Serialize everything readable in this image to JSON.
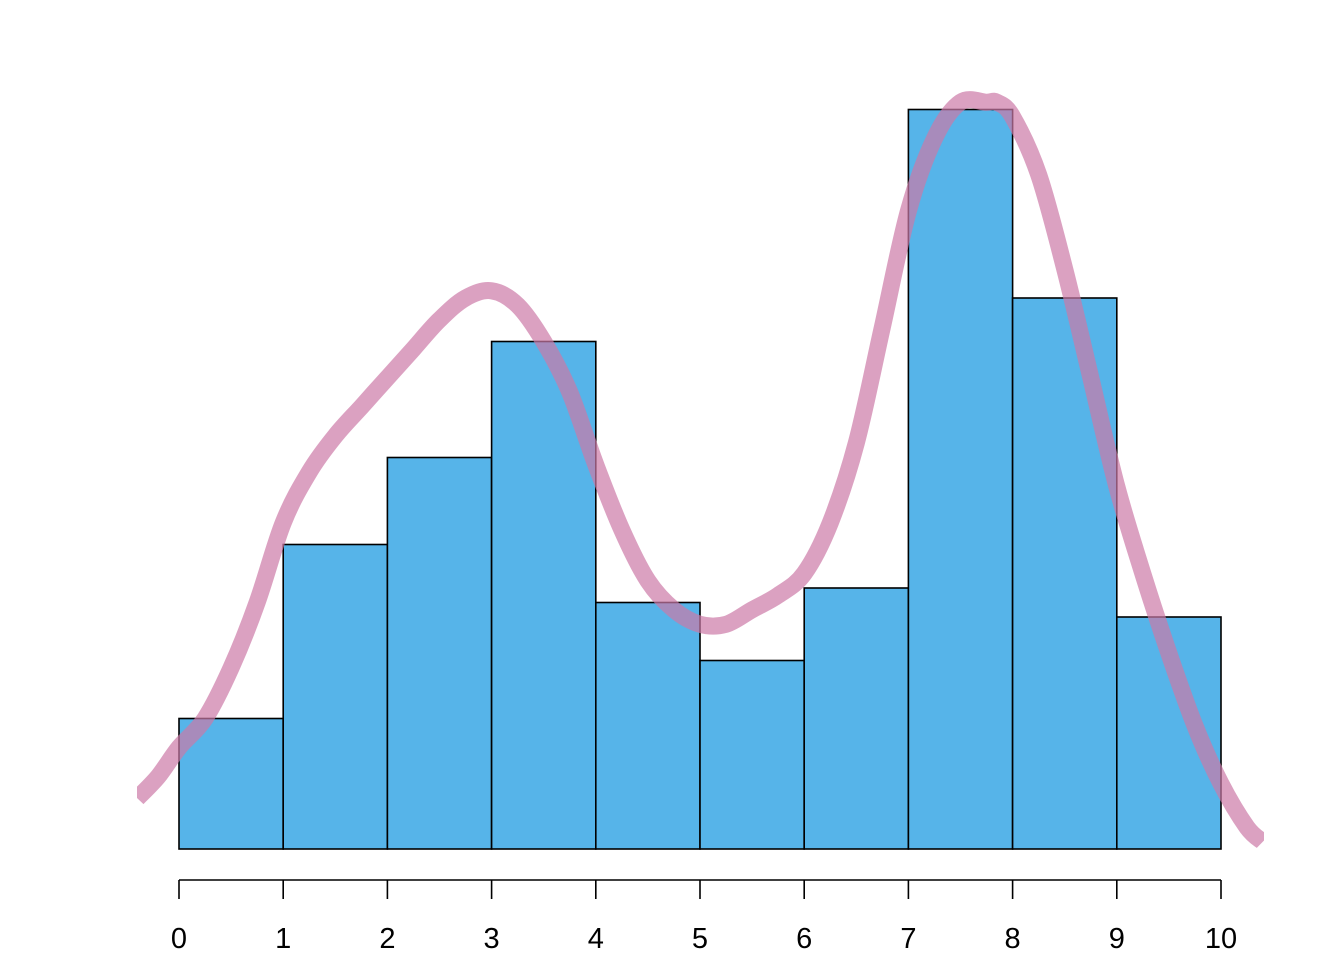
{
  "chart_data": {
    "type": "bar",
    "bins": [
      {
        "x0": 0,
        "x1": 1,
        "value": 9
      },
      {
        "x0": 1,
        "x1": 2,
        "value": 21
      },
      {
        "x0": 2,
        "x1": 3,
        "value": 27
      },
      {
        "x0": 3,
        "x1": 4,
        "value": 35
      },
      {
        "x0": 4,
        "x1": 5,
        "value": 17
      },
      {
        "x0": 5,
        "x1": 6,
        "value": 13
      },
      {
        "x0": 6,
        "x1": 7,
        "value": 18
      },
      {
        "x0": 7,
        "x1": 8,
        "value": 51
      },
      {
        "x0": 8,
        "x1": 9,
        "value": 38
      },
      {
        "x0": 9,
        "x1": 10,
        "value": 16
      }
    ],
    "density_curve": {
      "x": [
        -0.4,
        -0.2,
        0,
        0.25,
        0.5,
        0.75,
        1,
        1.25,
        1.5,
        1.75,
        2,
        2.25,
        2.5,
        2.75,
        3,
        3.25,
        3.5,
        3.75,
        4,
        4.25,
        4.5,
        4.75,
        5,
        5.25,
        5.5,
        5.75,
        6,
        6.25,
        6.5,
        6.75,
        7,
        7.25,
        7.5,
        7.75,
        7.85,
        8,
        8.25,
        8.5,
        8.75,
        9,
        9.25,
        9.5,
        9.75,
        10,
        10.25,
        10.4
      ],
      "y": [
        3.5,
        5.0,
        7.0,
        9.0,
        12.5,
        17.0,
        22.5,
        26.0,
        28.5,
        30.5,
        32.5,
        34.5,
        36.5,
        38.0,
        38.5,
        37.5,
        35.0,
        31.5,
        26.5,
        22.0,
        18.5,
        16.5,
        15.5,
        15.5,
        16.5,
        17.5,
        19.0,
        22.5,
        28.0,
        36.0,
        44.0,
        49.0,
        51.5,
        51.5,
        51.5,
        50.5,
        46.5,
        40.0,
        32.5,
        25.0,
        19.0,
        13.5,
        8.5,
        4.5,
        1.5,
        0.5
      ]
    },
    "xticks": [
      "0",
      "1",
      "2",
      "3",
      "4",
      "5",
      "6",
      "7",
      "8",
      "9",
      "10"
    ],
    "xlim": [
      -0.4,
      10.4
    ],
    "ylim": [
      0,
      55
    ],
    "title": "",
    "xlabel": "",
    "ylabel": "",
    "grid": false,
    "colors": {
      "bar_fill": "#56B4E9",
      "bar_stroke": "#000000",
      "curve": "#CC79A7",
      "axis": "#000000"
    }
  }
}
